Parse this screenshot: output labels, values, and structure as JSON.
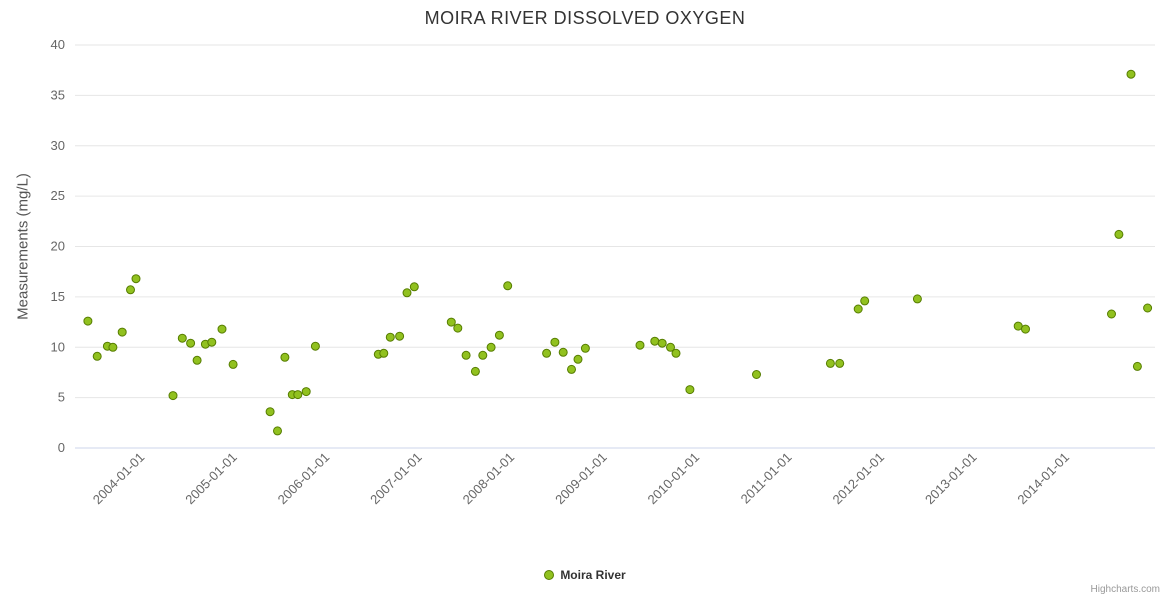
{
  "chart_data": {
    "type": "scatter",
    "title": "MOIRA RIVER DISSOLVED OXYGEN",
    "ylabel": "Measurements (mg/L)",
    "ylim": [
      0,
      40
    ],
    "yticks": [
      0,
      5,
      10,
      15,
      20,
      25,
      30,
      35,
      40
    ],
    "xlim": [
      2003.24,
      2014.92
    ],
    "xticks": [
      {
        "year": 2004,
        "label": "2004-01-01"
      },
      {
        "year": 2005,
        "label": "2005-01-01"
      },
      {
        "year": 2006,
        "label": "2006-01-01"
      },
      {
        "year": 2007,
        "label": "2007-01-01"
      },
      {
        "year": 2008,
        "label": "2008-01-01"
      },
      {
        "year": 2009,
        "label": "2009-01-01"
      },
      {
        "year": 2010,
        "label": "2010-01-01"
      },
      {
        "year": 2011,
        "label": "2011-01-01"
      },
      {
        "year": 2012,
        "label": "2012-01-01"
      },
      {
        "year": 2013,
        "label": "2013-01-01"
      },
      {
        "year": 2014,
        "label": "2014-01-01"
      }
    ],
    "grid": "horizontal-only",
    "legend_position": "bottom-center",
    "credit": "Highcharts.com",
    "colors": {
      "marker_fill": "#91c11f",
      "marker_stroke": "#567d00",
      "gridline": "#e6e6e6",
      "axis_line": "#ccd6eb",
      "tick_label": "#666666"
    },
    "series": [
      {
        "name": "Moira River",
        "points": [
          [
            2003.38,
            12.6
          ],
          [
            2003.48,
            9.1
          ],
          [
            2003.59,
            10.1
          ],
          [
            2003.65,
            10.0
          ],
          [
            2003.75,
            11.5
          ],
          [
            2003.84,
            15.7
          ],
          [
            2003.9,
            16.8
          ],
          [
            2004.3,
            5.2
          ],
          [
            2004.4,
            10.9
          ],
          [
            2004.49,
            10.4
          ],
          [
            2004.56,
            8.7
          ],
          [
            2004.65,
            10.3
          ],
          [
            2004.72,
            10.5
          ],
          [
            2004.83,
            11.8
          ],
          [
            2004.95,
            8.3
          ],
          [
            2005.35,
            3.6
          ],
          [
            2005.43,
            1.7
          ],
          [
            2005.51,
            9.0
          ],
          [
            2005.59,
            5.3
          ],
          [
            2005.65,
            5.3
          ],
          [
            2005.74,
            5.6
          ],
          [
            2005.84,
            10.1
          ],
          [
            2006.52,
            9.3
          ],
          [
            2006.58,
            9.4
          ],
          [
            2006.65,
            11.0
          ],
          [
            2006.75,
            11.1
          ],
          [
            2006.83,
            15.4
          ],
          [
            2006.91,
            16.0
          ],
          [
            2007.31,
            12.5
          ],
          [
            2007.38,
            11.9
          ],
          [
            2007.47,
            9.2
          ],
          [
            2007.57,
            7.6
          ],
          [
            2007.65,
            9.2
          ],
          [
            2007.74,
            10.0
          ],
          [
            2007.83,
            11.2
          ],
          [
            2007.92,
            16.1
          ],
          [
            2008.34,
            9.4
          ],
          [
            2008.43,
            10.5
          ],
          [
            2008.52,
            9.5
          ],
          [
            2008.61,
            7.8
          ],
          [
            2008.68,
            8.8
          ],
          [
            2008.76,
            9.9
          ],
          [
            2009.35,
            10.2
          ],
          [
            2009.51,
            10.6
          ],
          [
            2009.59,
            10.4
          ],
          [
            2009.68,
            10.0
          ],
          [
            2009.74,
            9.4
          ],
          [
            2009.89,
            5.8
          ],
          [
            2010.61,
            7.3
          ],
          [
            2011.41,
            8.4
          ],
          [
            2011.51,
            8.4
          ],
          [
            2011.71,
            13.8
          ],
          [
            2011.78,
            14.6
          ],
          [
            2012.35,
            14.8
          ],
          [
            2013.44,
            12.1
          ],
          [
            2013.52,
            11.8
          ],
          [
            2014.45,
            13.3
          ],
          [
            2014.53,
            21.2
          ],
          [
            2014.66,
            37.1
          ],
          [
            2014.73,
            8.1
          ],
          [
            2014.84,
            13.9
          ]
        ]
      }
    ]
  }
}
